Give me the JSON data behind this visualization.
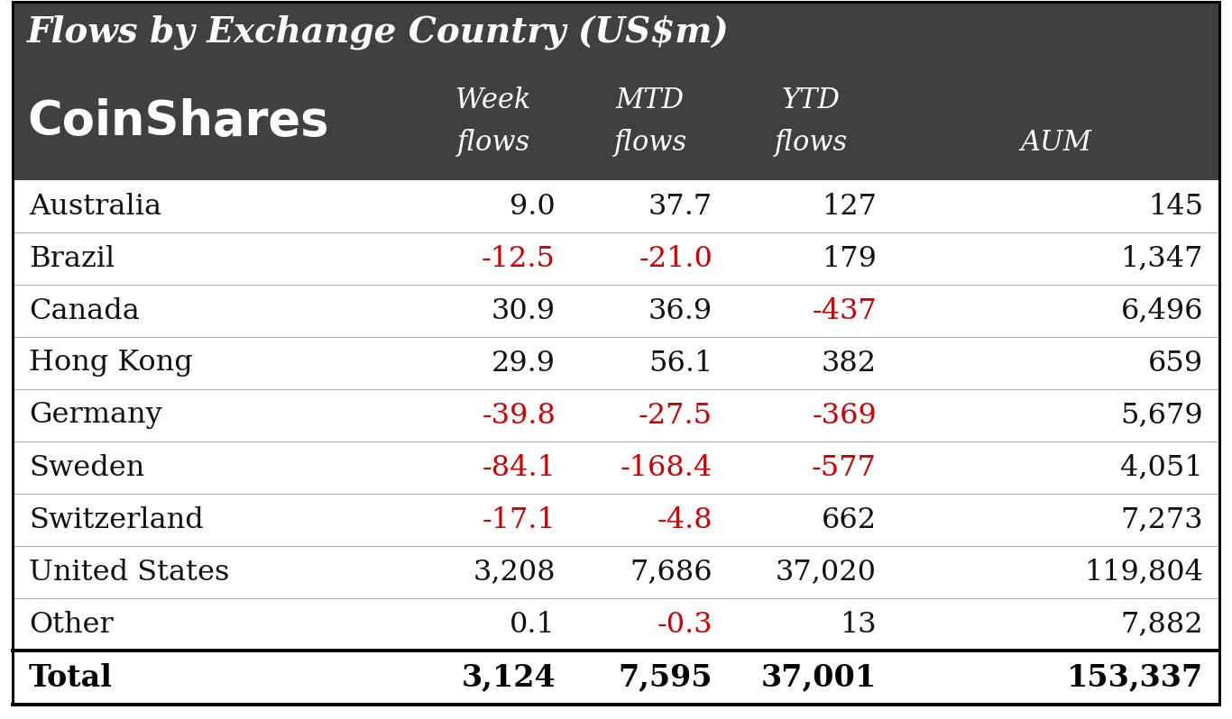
{
  "title": "Flows by Exchange Country (US$m)",
  "title_bg_color": "#404040",
  "title_text_color": "#ffffff",
  "header_bg_color": "#404040",
  "header_text_color": "#ffffff",
  "row_bg_color": "#ffffff",
  "row_text_color": "#111111",
  "negative_color": "#cc0000",
  "total_row_text_color": "#000000",
  "coinshares_text": "CoinShares",
  "col_header_line1": [
    "Week",
    "MTD",
    "YTD",
    ""
  ],
  "col_header_line2": [
    "flows",
    "flows",
    "flows",
    "AUM"
  ],
  "rows": [
    {
      "country": "Australia",
      "week": "9.0",
      "mtd": "37.7",
      "ytd": "127",
      "aum": "145",
      "week_neg": false,
      "mtd_neg": false,
      "ytd_neg": false
    },
    {
      "country": "Brazil",
      "week": "-12.5",
      "mtd": "-21.0",
      "ytd": "179",
      "aum": "1,347",
      "week_neg": true,
      "mtd_neg": true,
      "ytd_neg": false
    },
    {
      "country": "Canada",
      "week": "30.9",
      "mtd": "36.9",
      "ytd": "-437",
      "aum": "6,496",
      "week_neg": false,
      "mtd_neg": false,
      "ytd_neg": true
    },
    {
      "country": "Hong Kong",
      "week": "29.9",
      "mtd": "56.1",
      "ytd": "382",
      "aum": "659",
      "week_neg": false,
      "mtd_neg": false,
      "ytd_neg": false
    },
    {
      "country": "Germany",
      "week": "-39.8",
      "mtd": "-27.5",
      "ytd": "-369",
      "aum": "5,679",
      "week_neg": true,
      "mtd_neg": true,
      "ytd_neg": true
    },
    {
      "country": "Sweden",
      "week": "-84.1",
      "mtd": "-168.4",
      "ytd": "-577",
      "aum": "4,051",
      "week_neg": true,
      "mtd_neg": true,
      "ytd_neg": true
    },
    {
      "country": "Switzerland",
      "week": "-17.1",
      "mtd": "-4.8",
      "ytd": "662",
      "aum": "7,273",
      "week_neg": true,
      "mtd_neg": true,
      "ytd_neg": false
    },
    {
      "country": "United States",
      "week": "3,208",
      "mtd": "7,686",
      "ytd": "37,020",
      "aum": "119,804",
      "week_neg": false,
      "mtd_neg": false,
      "ytd_neg": false
    },
    {
      "country": "Other",
      "week": "0.1",
      "mtd": "-0.3",
      "ytd": "13",
      "aum": "7,882",
      "week_neg": false,
      "mtd_neg": true,
      "ytd_neg": false
    }
  ],
  "total": {
    "country": "Total",
    "week": "3,124",
    "mtd": "7,595",
    "ytd": "37,001",
    "aum": "153,337"
  }
}
